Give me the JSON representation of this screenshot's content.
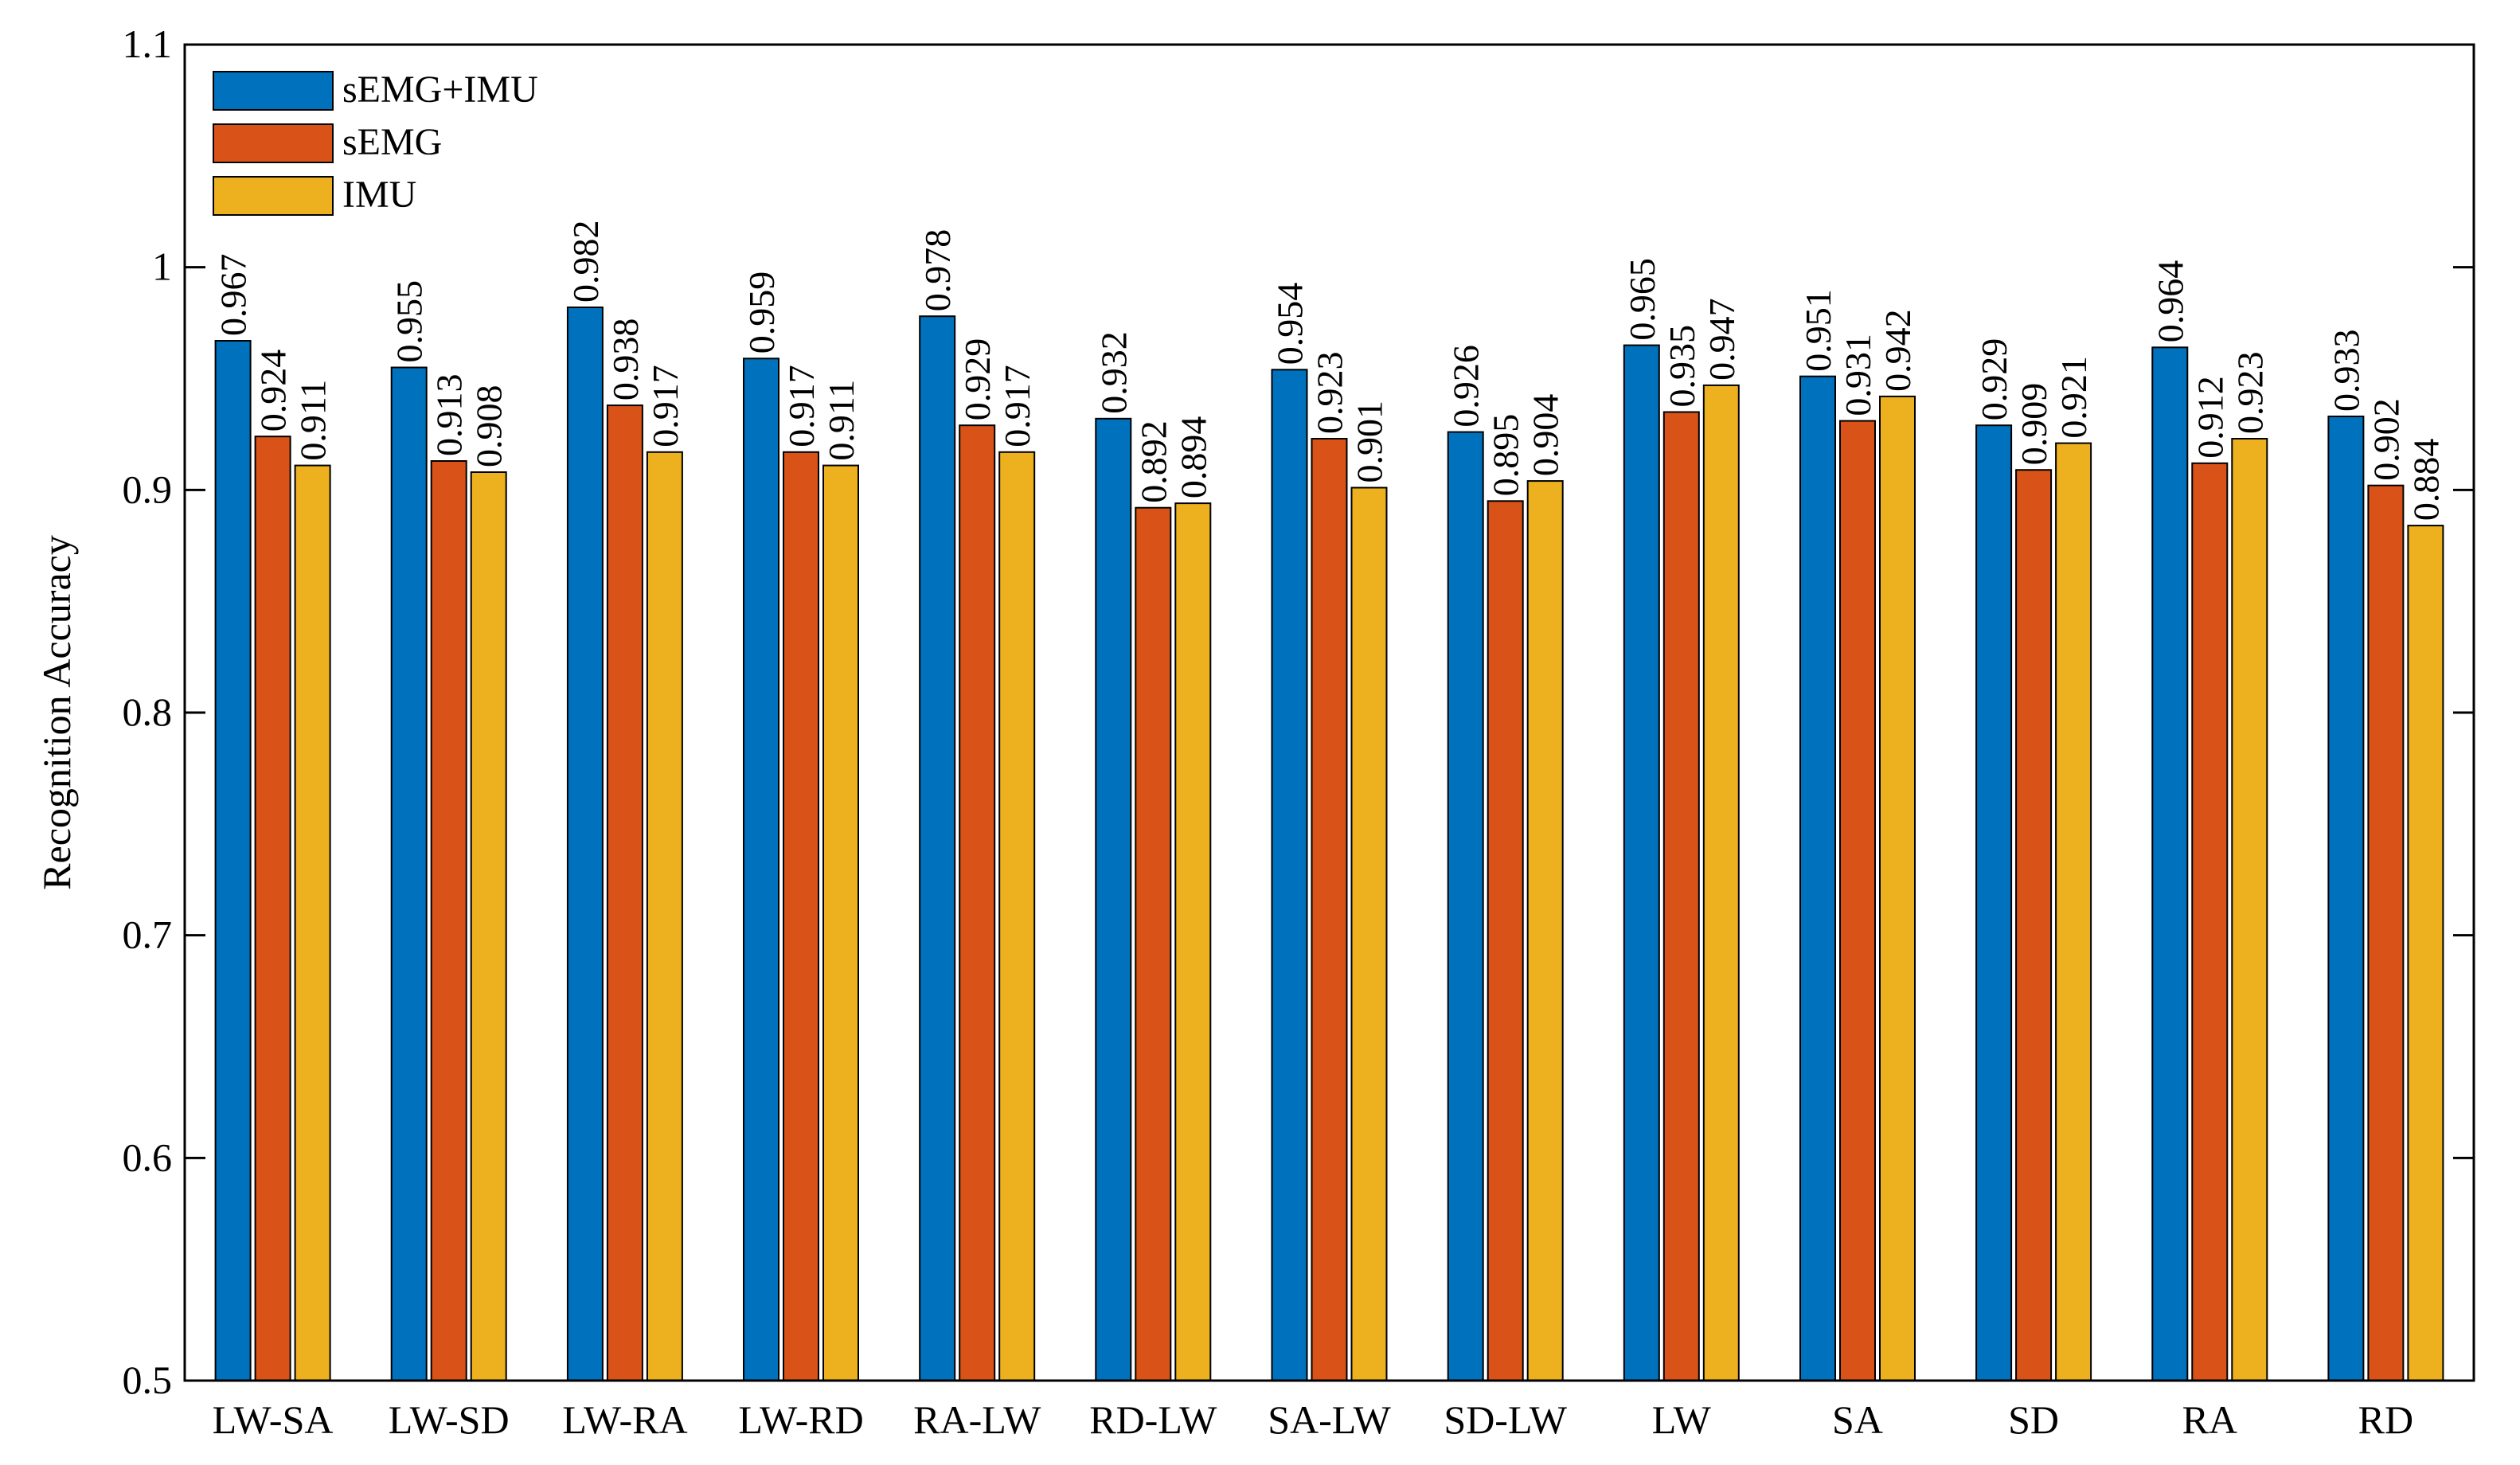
{
  "chart_data": {
    "type": "bar",
    "title": "",
    "xlabel": "",
    "ylabel": "Recognition Accuracy",
    "ylim": [
      0.5,
      1.1
    ],
    "yticks": [
      "0.5",
      "0.6",
      "0.7",
      "0.8",
      "0.9",
      "1",
      "1.1"
    ],
    "grid": false,
    "legend_position": "top-left",
    "categories": [
      "LW-SA",
      "LW-SD",
      "LW-RA",
      "LW-RD",
      "RA-LW",
      "RD-LW",
      "SA-LW",
      "SD-LW",
      "LW",
      "SA",
      "SD",
      "RA",
      "RD"
    ],
    "series": [
      {
        "name": "sEMG+IMU",
        "color": "#0072BD",
        "values": [
          0.967,
          0.955,
          0.982,
          0.959,
          0.978,
          0.932,
          0.954,
          0.926,
          0.965,
          0.951,
          0.929,
          0.964,
          0.933
        ],
        "labels": [
          "0.967",
          "0.955",
          "0.982",
          "0.959",
          "0.978",
          "0.932",
          "0.954",
          "0.926",
          "0.965",
          "0.951",
          "0.929",
          "0.964",
          "0.933"
        ]
      },
      {
        "name": "sEMG",
        "color": "#D95319",
        "values": [
          0.924,
          0.913,
          0.938,
          0.917,
          0.929,
          0.892,
          0.923,
          0.895,
          0.935,
          0.931,
          0.909,
          0.912,
          0.902
        ],
        "labels": [
          "0.924",
          "0.913",
          "0.938",
          "0.917",
          "0.929",
          "0.892",
          "0.923",
          "0.895",
          "0.935",
          "0.931",
          "0.909",
          "0.912",
          "0.902"
        ]
      },
      {
        "name": "IMU",
        "color": "#EDB120",
        "values": [
          0.911,
          0.908,
          0.917,
          0.911,
          0.917,
          0.894,
          0.901,
          0.904,
          0.947,
          0.942,
          0.921,
          0.923,
          0.884
        ],
        "labels": [
          "0.911",
          "0.908",
          "0.917",
          "0.911",
          "0.917",
          "0.894",
          "0.901",
          "0.904",
          "0.947",
          "0.942",
          "0.921",
          "0.923",
          "0.884"
        ]
      }
    ]
  }
}
